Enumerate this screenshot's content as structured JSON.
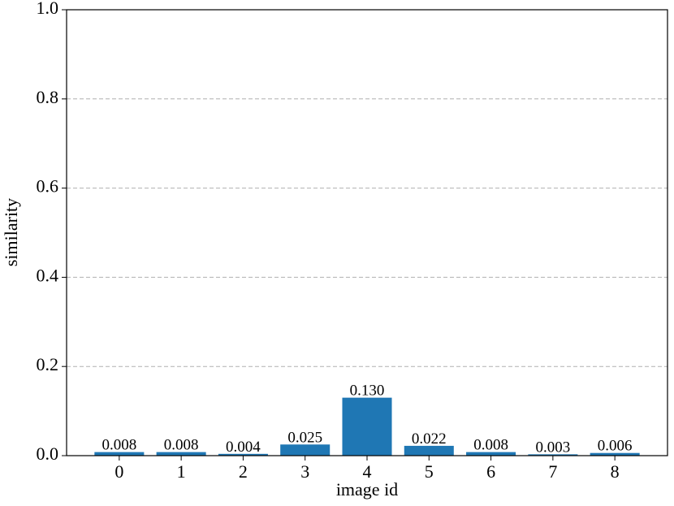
{
  "chart_data": {
    "type": "bar",
    "x_label": "image id",
    "y_label": "similarity",
    "categories": [
      "0",
      "1",
      "2",
      "3",
      "4",
      "5",
      "6",
      "7",
      "8"
    ],
    "values": [
      0.008,
      0.008,
      0.004,
      0.025,
      0.13,
      0.022,
      0.008,
      0.003,
      0.006
    ],
    "value_labels": [
      "0.008",
      "0.008",
      "0.004",
      "0.025",
      "0.130",
      "0.022",
      "0.008",
      "0.003",
      "0.006"
    ],
    "color": "#1f77b4",
    "ylim": [
      0,
      1
    ],
    "yticks": [
      {
        "value": 0,
        "label": "0.0"
      },
      0.2,
      0.4,
      0.6,
      0.8,
      {
        "value": 1,
        "label": "1.0"
      }
    ],
    "grid": true
  }
}
